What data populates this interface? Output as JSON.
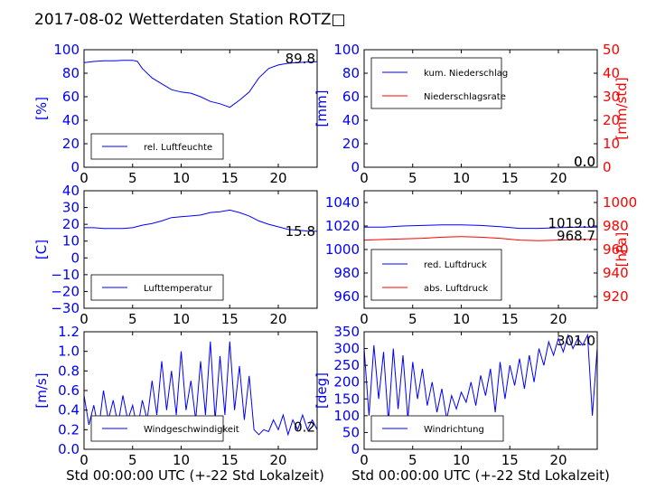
{
  "title": "2017-08-02 Wetterdaten Station ROTZ□",
  "xlabel": "Std 00:00:00 UTC (+-22 Std Lokalzeit)",
  "colors": {
    "primary": "#0000ff",
    "secondary": "#ff0000",
    "axis": "#000000"
  },
  "chart_data": [
    {
      "type": "line",
      "panel": "humidity",
      "xlim": [
        0,
        24
      ],
      "xticks": [
        0,
        5,
        10,
        15,
        20
      ],
      "ylim": [
        0,
        100
      ],
      "yticks": [
        0,
        20,
        40,
        60,
        80,
        100
      ],
      "ylabel": "[%]",
      "annotation": "89.8",
      "legend": {
        "position": "bottom-left",
        "entries": [
          "rel. Luftfeuchte"
        ]
      },
      "series": [
        {
          "name": "rel. Luftfeuchte",
          "color": "#0000ff",
          "x": [
            0,
            1,
            2,
            3,
            4,
            5,
            5.5,
            6,
            7,
            8,
            9,
            10,
            11,
            12,
            13,
            14,
            15,
            16,
            17,
            18,
            19,
            20,
            21,
            22,
            23,
            24
          ],
          "y": [
            89,
            90,
            90.5,
            90.5,
            91,
            91,
            90,
            84,
            76,
            71,
            66,
            64,
            63,
            60,
            56,
            54,
            51,
            57,
            64,
            76,
            84,
            87,
            88.5,
            89,
            89.5,
            89.8
          ]
        }
      ]
    },
    {
      "type": "line",
      "panel": "precipitation",
      "xlim": [
        0,
        24
      ],
      "xticks": [
        0,
        5,
        10,
        15,
        20
      ],
      "ylim": [
        0,
        100
      ],
      "yticks": [
        0,
        20,
        40,
        60,
        80,
        100
      ],
      "ylabel": "[mm]",
      "ylim_right": [
        0,
        50
      ],
      "yticks_right": [
        0,
        10,
        20,
        30,
        40,
        50
      ],
      "ylabel_right": "[mm/std]",
      "annotations": [
        "0.0",
        "0.0"
      ],
      "legend": {
        "position": "top-left",
        "entries": [
          "kum. Niederschlag",
          "Niederschlagsrate"
        ]
      },
      "series": [
        {
          "name": "kum. Niederschlag",
          "color": "#0000ff",
          "axis": "left",
          "x": [
            0,
            24
          ],
          "y": [
            0,
            0
          ]
        },
        {
          "name": "Niederschlagsrate",
          "color": "#ff0000",
          "axis": "right",
          "x": [
            0,
            24
          ],
          "y": [
            0,
            0
          ]
        }
      ]
    },
    {
      "type": "line",
      "panel": "temperature",
      "xlim": [
        0,
        24
      ],
      "xticks": [
        0,
        5,
        10,
        15,
        20
      ],
      "ylim": [
        -30,
        40
      ],
      "yticks": [
        -30,
        -20,
        -10,
        0,
        10,
        20,
        30,
        40
      ],
      "ylabel": "[C]",
      "annotation": "15.8",
      "legend": {
        "position": "bottom-left",
        "entries": [
          "Lufttemperatur"
        ]
      },
      "series": [
        {
          "name": "Lufttemperatur",
          "color": "#0000ff",
          "x": [
            0,
            1,
            2,
            3,
            4,
            5,
            6,
            7,
            8,
            9,
            10,
            11,
            12,
            13,
            14,
            15,
            16,
            17,
            18,
            19,
            20,
            21,
            22,
            23,
            24
          ],
          "y": [
            18,
            18,
            17.5,
            17.5,
            17.5,
            18,
            19.5,
            20.5,
            22,
            24,
            24.5,
            25,
            25.5,
            27,
            27.5,
            28.5,
            27,
            25,
            22,
            20,
            18.5,
            17,
            16.5,
            16,
            15.8
          ]
        }
      ]
    },
    {
      "type": "line",
      "panel": "pressure",
      "xlim": [
        0,
        24
      ],
      "xticks": [
        0,
        5,
        10,
        15,
        20
      ],
      "ylim": [
        950,
        1050
      ],
      "yticks": [
        960,
        980,
        1000,
        1020,
        1040
      ],
      "ylim_right": [
        910,
        1010
      ],
      "yticks_right": [
        920,
        940,
        960,
        980,
        1000
      ],
      "ylabel_right": "[hPa]",
      "annotations": [
        "1019.0",
        "968.7"
      ],
      "legend": {
        "position": "bottom-left",
        "entries": [
          "red. Luftdruck",
          "abs. Luftdruck"
        ]
      },
      "series": [
        {
          "name": "red. Luftdruck",
          "color": "#0000ff",
          "axis": "left",
          "x": [
            0,
            2,
            4,
            6,
            8,
            10,
            12,
            14,
            16,
            18,
            20,
            22,
            24
          ],
          "y": [
            1019,
            1019,
            1020,
            1020.5,
            1021,
            1021,
            1020.5,
            1019.5,
            1018,
            1018,
            1018.5,
            1019,
            1019
          ]
        },
        {
          "name": "abs. Luftdruck",
          "color": "#ff0000",
          "axis": "right",
          "x": [
            0,
            2,
            4,
            6,
            8,
            10,
            12,
            14,
            16,
            18,
            20,
            22,
            24
          ],
          "y": [
            968,
            968.5,
            969,
            969.5,
            970.5,
            971,
            970.5,
            969.5,
            968,
            967.5,
            968,
            968.5,
            968.7
          ]
        }
      ]
    },
    {
      "type": "line",
      "panel": "windspeed",
      "xlim": [
        0,
        24
      ],
      "xticks": [
        0,
        5,
        10,
        15,
        20
      ],
      "ylim": [
        0,
        1.2
      ],
      "yticks": [
        0.0,
        0.2,
        0.4,
        0.6,
        0.8,
        1.0,
        1.2
      ],
      "ylabel": "[m/s]",
      "annotation": "0.2",
      "legend": {
        "position": "bottom-left",
        "entries": [
          "Windgeschwindigkeit"
        ]
      },
      "series": [
        {
          "name": "Windgeschwindigkeit",
          "color": "#0000ff",
          "x": [
            0,
            0.5,
            1,
            1.5,
            2,
            2.5,
            3,
            3.5,
            4,
            4.5,
            5,
            5.5,
            6,
            6.5,
            7,
            7.5,
            8,
            8.5,
            9,
            9.5,
            10,
            10.5,
            11,
            11.5,
            12,
            12.5,
            13,
            13.5,
            14,
            14.5,
            15,
            15.5,
            16,
            16.5,
            17,
            17.5,
            18,
            18.5,
            19,
            19.5,
            20,
            20.5,
            21,
            21.5,
            22,
            22.5,
            23,
            23.5,
            24
          ],
          "y": [
            0.55,
            0.25,
            0.45,
            0.2,
            0.6,
            0.3,
            0.5,
            0.25,
            0.55,
            0.3,
            0.45,
            0.2,
            0.5,
            0.3,
            0.7,
            0.35,
            0.9,
            0.4,
            0.8,
            0.35,
            1.0,
            0.4,
            0.7,
            0.3,
            0.9,
            0.35,
            1.1,
            0.3,
            0.95,
            0.35,
            1.1,
            0.4,
            0.85,
            0.3,
            0.75,
            0.2,
            0.15,
            0.2,
            0.18,
            0.3,
            0.2,
            0.35,
            0.15,
            0.3,
            0.2,
            0.35,
            0.2,
            0.3,
            0.2
          ]
        }
      ]
    },
    {
      "type": "line",
      "panel": "winddirection",
      "xlim": [
        0,
        24
      ],
      "xticks": [
        0,
        5,
        10,
        15,
        20
      ],
      "ylim": [
        0,
        350
      ],
      "yticks": [
        0,
        50,
        100,
        150,
        200,
        250,
        300,
        350
      ],
      "ylabel": "[deg]",
      "annotation": "301.0",
      "legend": {
        "position": "bottom-left",
        "entries": [
          "Windrichtung"
        ]
      },
      "series": [
        {
          "name": "Windrichtung",
          "color": "#0000ff",
          "x": [
            0,
            0.5,
            1,
            1.5,
            2,
            2.5,
            3,
            3.5,
            4,
            4.5,
            5,
            5.5,
            6,
            6.5,
            7,
            7.5,
            8,
            8.5,
            9,
            9.5,
            10,
            10.5,
            11,
            11.5,
            12,
            12.5,
            13,
            13.5,
            14,
            14.5,
            15,
            15.5,
            16,
            16.5,
            17,
            17.5,
            18,
            18.5,
            19,
            19.5,
            20,
            20.5,
            21,
            21.5,
            22,
            22.5,
            23,
            23.5,
            24
          ],
          "y": [
            300,
            100,
            310,
            150,
            290,
            80,
            300,
            120,
            280,
            90,
            260,
            150,
            240,
            130,
            200,
            110,
            180,
            90,
            160,
            120,
            170,
            140,
            200,
            130,
            220,
            160,
            240,
            110,
            260,
            150,
            250,
            190,
            270,
            180,
            280,
            200,
            300,
            250,
            320,
            280,
            330,
            290,
            340,
            300,
            330,
            310,
            340,
            100,
            301
          ]
        }
      ]
    }
  ]
}
